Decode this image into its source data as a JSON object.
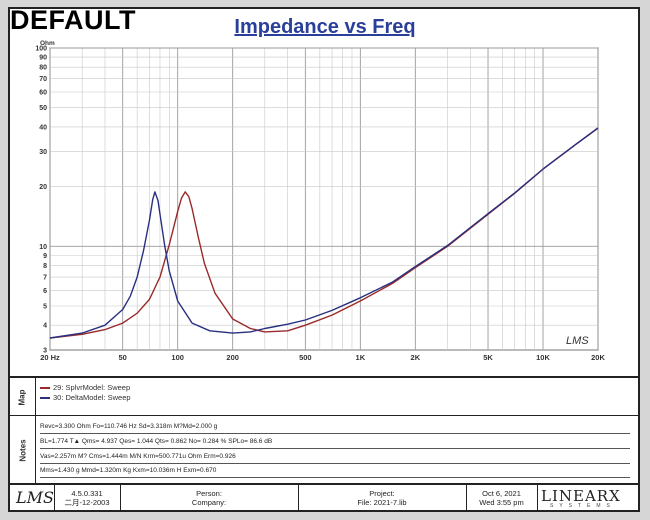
{
  "header": {
    "default_label": "DEFAULT"
  },
  "chart_data": {
    "type": "line",
    "title": "Impedance vs Freq",
    "ylabel": "Ohm",
    "xscale": "log",
    "yscale": "log",
    "xlim": [
      20,
      20000
    ],
    "ylim": [
      3,
      100
    ],
    "x_ticks": [
      {
        "v": 20,
        "label": "20 Hz"
      },
      {
        "v": 50,
        "label": "50"
      },
      {
        "v": 100,
        "label": "100"
      },
      {
        "v": 200,
        "label": "200"
      },
      {
        "v": 500,
        "label": "500"
      },
      {
        "v": 1000,
        "label": "1K"
      },
      {
        "v": 2000,
        "label": "2K"
      },
      {
        "v": 5000,
        "label": "5K"
      },
      {
        "v": 10000,
        "label": "10K"
      },
      {
        "v": 20000,
        "label": "20K"
      }
    ],
    "y_ticks": [
      {
        "v": 100,
        "label": "100"
      },
      {
        "v": 90,
        "label": "90"
      },
      {
        "v": 80,
        "label": "80"
      },
      {
        "v": 70,
        "label": "70"
      },
      {
        "v": 60,
        "label": "60"
      },
      {
        "v": 50,
        "label": "50"
      },
      {
        "v": 40,
        "label": "40"
      },
      {
        "v": 30,
        "label": "30"
      },
      {
        "v": 20,
        "label": "20"
      },
      {
        "v": 10,
        "label": "10"
      },
      {
        "v": 9,
        "label": "9"
      },
      {
        "v": 8,
        "label": "8"
      },
      {
        "v": 7,
        "label": "7"
      },
      {
        "v": 6,
        "label": "6"
      },
      {
        "v": 5,
        "label": "5"
      },
      {
        "v": 4,
        "label": "4"
      },
      {
        "v": 3,
        "label": "3"
      }
    ],
    "grid": true,
    "series": [
      {
        "name": "29: SplvrModel: Sweep",
        "color": "#9a2a2a",
        "x": [
          20,
          30,
          40,
          50,
          60,
          70,
          80,
          90,
          100,
          105,
          110,
          115,
          120,
          130,
          140,
          160,
          200,
          250,
          300,
          400,
          500,
          700,
          1000,
          1500,
          2000,
          3000,
          5000,
          7000,
          10000,
          15000,
          20000
        ],
        "y": [
          3.45,
          3.6,
          3.8,
          4.1,
          4.6,
          5.4,
          7.0,
          10.2,
          15.0,
          17.5,
          18.8,
          17.8,
          15.5,
          11.0,
          8.2,
          5.8,
          4.3,
          3.85,
          3.7,
          3.75,
          4.0,
          4.5,
          5.3,
          6.5,
          7.8,
          10.0,
          14.5,
          18.5,
          24.5,
          32.5,
          39.5
        ]
      },
      {
        "name": "30: DeltaModel: Sweep",
        "color": "#28307f",
        "x": [
          20,
          30,
          40,
          50,
          55,
          60,
          65,
          70,
          73,
          75,
          78,
          80,
          85,
          90,
          100,
          120,
          150,
          200,
          250,
          300,
          400,
          500,
          700,
          1000,
          1500,
          2000,
          3000,
          5000,
          7000,
          10000,
          15000,
          20000
        ],
        "y": [
          3.45,
          3.65,
          4.0,
          4.8,
          5.6,
          7.0,
          9.5,
          13.5,
          17.2,
          18.8,
          17.0,
          14.5,
          10.0,
          7.5,
          5.3,
          4.1,
          3.75,
          3.65,
          3.7,
          3.85,
          4.05,
          4.25,
          4.75,
          5.5,
          6.6,
          7.9,
          10.1,
          14.6,
          18.6,
          24.5,
          32.5,
          39.5
        ]
      }
    ]
  },
  "sections": {
    "map_label": "Map",
    "notes_label": "Notes"
  },
  "notes": [
    "Revc=3.300 Ohm  Fo=110.746 Hz  Sd=3.318m M?Md=2.000 g",
    "BL=1.774 T▲  Qms= 4.937  Qes= 1.044  Qts= 0.862  No= 0.284 %  SPLo= 86.6 dB",
    "Vas=2.257m M? Cms=1.444m M/N  Krm=500.771u Ohm  Erm=0.926",
    "Mms=1.430 g  Mmd=1.320m Kg  Kxm=10.036m H  Exm=0.670"
  ],
  "footer": {
    "logo": "LMS",
    "version": "4.5.0.331",
    "date_cn": "二月-12-2003",
    "person_label": "Person:",
    "company_label": "Company:",
    "project_label": "Project:",
    "file_label": "File: 2021-7.lib",
    "date": "Oct  6, 2021",
    "time": "Wed  3:55 pm",
    "brand": "LINEARX",
    "brand_sub": "SYSTEMS"
  },
  "watermark": "LMS"
}
